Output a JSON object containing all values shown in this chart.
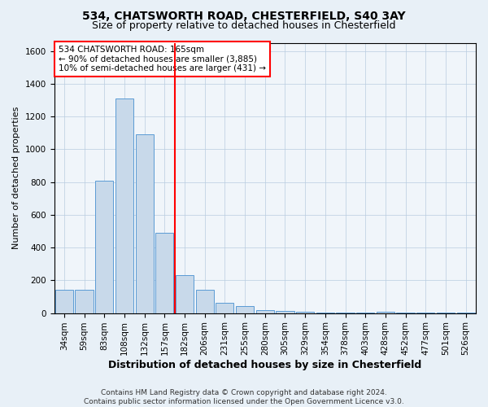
{
  "title1": "534, CHATSWORTH ROAD, CHESTERFIELD, S40 3AY",
  "title2": "Size of property relative to detached houses in Chesterfield",
  "xlabel": "Distribution of detached houses by size in Chesterfield",
  "ylabel": "Number of detached properties",
  "footer": "Contains HM Land Registry data © Crown copyright and database right 2024.\nContains public sector information licensed under the Open Government Licence v3.0.",
  "categories": [
    "34sqm",
    "59sqm",
    "83sqm",
    "108sqm",
    "132sqm",
    "157sqm",
    "182sqm",
    "206sqm",
    "231sqm",
    "255sqm",
    "280sqm",
    "305sqm",
    "329sqm",
    "354sqm",
    "378sqm",
    "403sqm",
    "428sqm",
    "452sqm",
    "477sqm",
    "501sqm",
    "526sqm"
  ],
  "values": [
    140,
    140,
    810,
    1310,
    1090,
    490,
    230,
    140,
    65,
    45,
    20,
    15,
    8,
    5,
    3,
    3,
    10,
    2,
    1,
    1,
    1
  ],
  "bar_color": "#c8d9ea",
  "bar_edge_color": "#5b9bd5",
  "red_line_x": 6.5,
  "annotation_text_line1": "534 CHATSWORTH ROAD: 165sqm",
  "annotation_text_line2": "← 90% of detached houses are smaller (3,885)",
  "annotation_text_line3": "10% of semi-detached houses are larger (431) →",
  "annotation_box_color": "white",
  "annotation_box_edge_color": "red",
  "ylim": [
    0,
    1650
  ],
  "yticks": [
    0,
    200,
    400,
    600,
    800,
    1000,
    1200,
    1400,
    1600
  ],
  "background_color": "#e8f0f7",
  "plot_background_color": "#f0f5fa",
  "title1_fontsize": 10,
  "title2_fontsize": 9,
  "xlabel_fontsize": 9,
  "ylabel_fontsize": 8,
  "tick_fontsize": 7.5,
  "annotation_fontsize": 7.5,
  "footer_fontsize": 6.5
}
